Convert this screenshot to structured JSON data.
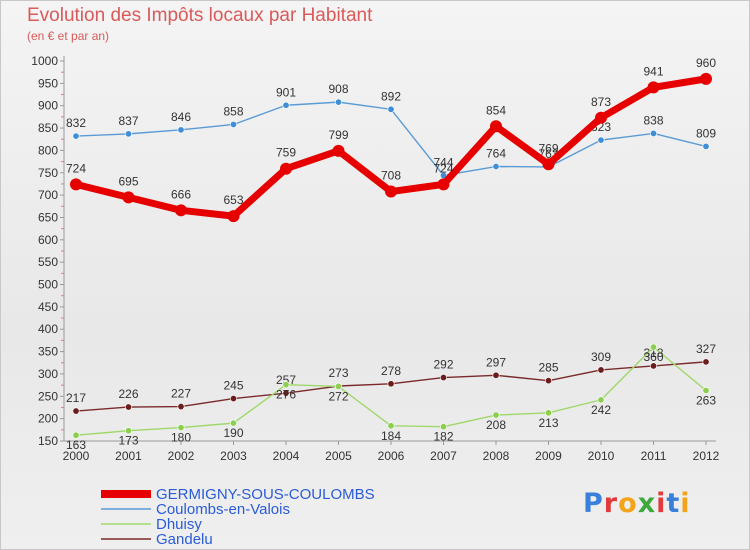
{
  "title": "Evolution des Impôts locaux par Habitant",
  "subtitle": "(en € et par an)",
  "logo": {
    "text": "Proxiti",
    "colors": [
      "#3a7fd9",
      "#e23b3b",
      "#f2a51b",
      "#3da93d",
      "#e23b3b",
      "#3a7fd9",
      "#f2a51b"
    ]
  },
  "chart_data": {
    "type": "line",
    "title": "Evolution des Impôts locaux par Habitant",
    "subtitle": "(en € et par an)",
    "xlabel": "",
    "ylabel": "",
    "ylim": [
      150,
      1000
    ],
    "yticks": [
      150,
      200,
      250,
      300,
      350,
      400,
      450,
      500,
      550,
      600,
      650,
      700,
      750,
      800,
      850,
      900,
      950,
      1000
    ],
    "grid": false,
    "legend_position": "bottom-left",
    "categories": [
      "2000",
      "2001",
      "2002",
      "2003",
      "2004",
      "2005",
      "2006",
      "2007",
      "2008",
      "2009",
      "2010",
      "2011",
      "2012"
    ],
    "series": [
      {
        "name": "Coulombs-en-Valois",
        "color": "#5b9bd5",
        "values": [
          832,
          837,
          846,
          858,
          901,
          908,
          892,
          744,
          764,
          763,
          823,
          838,
          809
        ]
      },
      {
        "name": "Dhuisy",
        "color": "#9fd86a",
        "values": [
          163,
          173,
          180,
          190,
          276,
          272,
          184,
          182,
          208,
          213,
          242,
          360,
          263
        ]
      },
      {
        "name": "Gandelu",
        "color": "#7a2a2a",
        "values": [
          217,
          226,
          227,
          245,
          257,
          273,
          278,
          292,
          297,
          285,
          309,
          318,
          327
        ]
      },
      {
        "name": "GERMIGNY-SOUS-COULOMBS",
        "color": "#e60000",
        "values": [
          724,
          695,
          666,
          653,
          759,
          799,
          708,
          724,
          854,
          769,
          873,
          941,
          960
        ]
      }
    ],
    "legend": [
      "GERMIGNY-SOUS-COULOMBS",
      "Coulombs-en-Valois",
      "Dhuisy",
      "Gandelu"
    ]
  }
}
